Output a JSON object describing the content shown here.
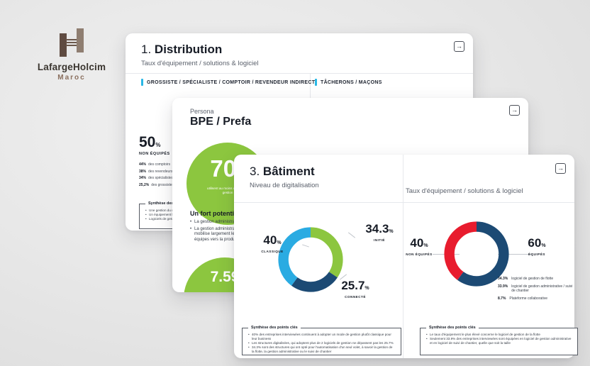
{
  "logo": {
    "brand": "LafargeHolcim",
    "region": "Maroc"
  },
  "strings": {
    "percent": "%",
    "arrow": "→"
  },
  "cards": {
    "distribution": {
      "number": "1.",
      "title": "Distribution",
      "subtitle": "Taux d'équipement / solutions & logiciel",
      "tab_left": "GROSSISTE / SPÉCIALISTE / COMPTOIR / REVENDEUR INDIRECT",
      "tab_right": "TÂCHERONS / MAÇONS",
      "stat": {
        "value": "50",
        "unit": "%",
        "label": "NON ÉQUIPÉS"
      },
      "stat_details": [
        {
          "pct": "44%",
          "label": "des comptoirs"
        },
        {
          "pct": "38%",
          "label": "des revendeurs indirects"
        },
        {
          "pct": "34%",
          "label": "des spécialistes"
        },
        {
          "pct": "25,2%",
          "label": "des grossistes"
        }
      ],
      "synthesis": {
        "title": "Synthèse des points clés",
        "bullets": [
          "Une gestion du métier très classique",
          "Un équipement logiciel qui reste limité",
          "Logiciels de gestion administrative dominants"
        ]
      }
    },
    "persona": {
      "kicker": "Persona",
      "title": "BPE / Prefa",
      "circle1": {
        "value": "70",
        "unit": "%",
        "caption": "utilisent au moins un outil de gestion"
      },
      "heading": "Un fort potentiel",
      "bullets": [
        "La gestion administrative",
        "La gestion administrative mobilise largement les équipes vers la productivité"
      ],
      "circle2": {
        "value": "7.59"
      }
    },
    "batiment": {
      "number": "3.",
      "title": "Bâtiment",
      "subtitle_left": "Niveau de digitalisation",
      "subtitle_right": "Taux d'équipement / solutions & logiciel",
      "equipment_breakdown": [
        {
          "pct": "34.3%",
          "label": "logiciel de gestion de flotte"
        },
        {
          "pct": "33.9%",
          "label": "logiciel de gestion administrative / suivi de chantier"
        },
        {
          "pct": "8.7%",
          "label": "Plateforme collaborative"
        }
      ],
      "synthesis_left": {
        "title": "Synthèse des points clés",
        "bullets": [
          "40% des entreprises interviewées continuent à adopter un mode de gestion plutôt classique pour leur business",
          "Les structures digitalisées, qui adoptent plus de 2 logiciels de gestion ne dépassent pas les 25.7%",
          "34.3% sont des structures qui ont opté pour l'automatisation d'un seul volet, à savoir la gestion de la flotte, la gestion administrative ou le suivi de chantier"
        ]
      },
      "synthesis_right": {
        "title": "Synthèse des points clés",
        "bullets": [
          "Le taux d'équipement le plus élevé concerne le logiciel de gestion de la flotte",
          "Seulement 33.9% des entreprises interviewées sont équipées en logiciel de gestion administrative et en logiciel de suivi de chantier, quelle que soit la taille"
        ]
      }
    }
  },
  "chart_data": [
    {
      "type": "pie",
      "donut": true,
      "title": "Niveau de digitalisation",
      "legend_position": "around",
      "segments": [
        {
          "label": "INITIÉ",
          "value": 34.3,
          "display": "34.3",
          "color": "#8cc63f"
        },
        {
          "label": "CONNECTÉ",
          "value": 25.7,
          "display": "25.7",
          "color": "#1c4a74"
        },
        {
          "label": "CLASSIQUE",
          "value": 40,
          "display": "40",
          "color": "#2aabe2"
        }
      ]
    },
    {
      "type": "pie",
      "donut": true,
      "title": "Taux d'équipement / solutions & logiciel",
      "legend_position": "around",
      "segments": [
        {
          "label": "ÉQUIPÉS",
          "value": 60,
          "display": "60",
          "color": "#1c4a74"
        },
        {
          "label": "NON ÉQUIPÉS",
          "value": 40,
          "display": "40",
          "color": "#e81c2e"
        }
      ]
    }
  ]
}
